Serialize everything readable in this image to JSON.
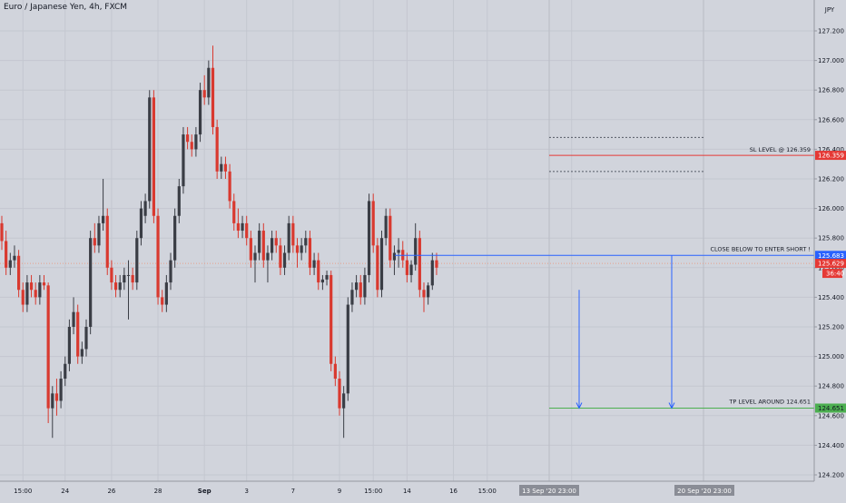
{
  "header": {
    "title": "Euro / Japanese Yen, 4h, FXCM",
    "currency": "JPY"
  },
  "colors": {
    "background": "#d1d4dc",
    "bull": "#3a3d45",
    "bear": "#d9392f",
    "sl_line": "#e53935",
    "entry_line": "#2962ff",
    "tp_line": "#4caf50",
    "dotted": "#555a66",
    "arrow": "#2962ff"
  },
  "chart_data": {
    "type": "candlestick",
    "title": "Euro / Japanese Yen, 4h, FXCM",
    "ylabel": "JPY",
    "ylim": [
      124.15,
      127.35
    ],
    "y_ticks": [
      "127.200",
      "127.000",
      "126.800",
      "126.600",
      "126.400",
      "126.200",
      "126.000",
      "125.800",
      "125.600",
      "125.400",
      "125.200",
      "125.000",
      "124.800",
      "124.600",
      "124.400",
      "124.200"
    ],
    "y_tick_values": [
      127.2,
      127.0,
      126.8,
      126.6,
      126.4,
      126.2,
      126.0,
      125.8,
      125.6,
      125.4,
      125.2,
      125.0,
      124.8,
      124.6,
      124.4,
      124.2
    ],
    "x_ticks": [
      "15:00",
      "24",
      "26",
      "28",
      "Sep",
      "3",
      "7",
      "9",
      "15:00",
      "14",
      "16",
      "15:00",
      "23"
    ],
    "x_tick_index": [
      5,
      15,
      26,
      37,
      48,
      58,
      69,
      80,
      88,
      96,
      107,
      115,
      135
    ],
    "x_count": 140,
    "gridlines": true,
    "candles_ohlc": [
      [
        125.9,
        125.95,
        125.72,
        125.78
      ],
      [
        125.78,
        125.85,
        125.55,
        125.6
      ],
      [
        125.6,
        125.7,
        125.55,
        125.65
      ],
      [
        125.65,
        125.75,
        125.6,
        125.68
      ],
      [
        125.68,
        125.72,
        125.4,
        125.45
      ],
      [
        125.45,
        125.5,
        125.3,
        125.35
      ],
      [
        125.35,
        125.55,
        125.3,
        125.5
      ],
      [
        125.5,
        125.55,
        125.4,
        125.45
      ],
      [
        125.45,
        125.5,
        125.35,
        125.4
      ],
      [
        125.4,
        125.55,
        125.35,
        125.5
      ],
      [
        125.5,
        125.55,
        125.45,
        125.48
      ],
      [
        125.48,
        125.5,
        124.55,
        124.65
      ],
      [
        124.65,
        124.8,
        124.45,
        124.75
      ],
      [
        124.75,
        124.85,
        124.6,
        124.7
      ],
      [
        124.7,
        124.9,
        124.65,
        124.85
      ],
      [
        124.85,
        125.0,
        124.8,
        124.95
      ],
      [
        124.95,
        125.25,
        124.9,
        125.2
      ],
      [
        125.2,
        125.4,
        125.15,
        125.3
      ],
      [
        125.3,
        125.35,
        124.95,
        125.0
      ],
      [
        125.0,
        125.1,
        124.95,
        125.05
      ],
      [
        125.05,
        125.25,
        125.0,
        125.2
      ],
      [
        125.2,
        125.85,
        125.15,
        125.8
      ],
      [
        125.8,
        125.9,
        125.7,
        125.75
      ],
      [
        125.75,
        125.95,
        125.7,
        125.9
      ],
      [
        125.9,
        126.2,
        125.85,
        125.95
      ],
      [
        125.95,
        126.0,
        125.55,
        125.6
      ],
      [
        125.6,
        125.65,
        125.45,
        125.5
      ],
      [
        125.5,
        125.55,
        125.4,
        125.45
      ],
      [
        125.45,
        125.55,
        125.4,
        125.5
      ],
      [
        125.5,
        125.6,
        125.45,
        125.55
      ],
      [
        125.55,
        125.65,
        125.25,
        125.55
      ],
      [
        125.55,
        125.6,
        125.45,
        125.5
      ],
      [
        125.5,
        125.85,
        125.45,
        125.8
      ],
      [
        125.8,
        126.05,
        125.75,
        126.0
      ],
      [
        125.95,
        126.1,
        125.9,
        126.05
      ],
      [
        126.05,
        126.8,
        126.0,
        126.75
      ],
      [
        126.75,
        126.8,
        125.9,
        125.95
      ],
      [
        125.95,
        126.0,
        125.35,
        125.4
      ],
      [
        125.4,
        125.45,
        125.3,
        125.35
      ],
      [
        125.35,
        125.55,
        125.3,
        125.5
      ],
      [
        125.5,
        125.7,
        125.45,
        125.65
      ],
      [
        125.65,
        126.0,
        125.6,
        125.95
      ],
      [
        125.95,
        126.2,
        125.9,
        126.15
      ],
      [
        126.15,
        126.55,
        126.1,
        126.5
      ],
      [
        126.5,
        126.55,
        126.4,
        126.45
      ],
      [
        126.45,
        126.5,
        126.35,
        126.4
      ],
      [
        126.4,
        126.55,
        126.35,
        126.5
      ],
      [
        126.5,
        126.85,
        126.45,
        126.8
      ],
      [
        126.8,
        126.9,
        126.7,
        126.75
      ],
      [
        126.75,
        127.0,
        126.7,
        126.95
      ],
      [
        126.95,
        127.1,
        126.5,
        126.55
      ],
      [
        126.55,
        126.6,
        126.2,
        126.25
      ],
      [
        126.25,
        126.35,
        126.2,
        126.3
      ],
      [
        126.3,
        126.35,
        126.2,
        126.25
      ],
      [
        126.25,
        126.3,
        126.0,
        126.05
      ],
      [
        126.05,
        126.1,
        125.85,
        125.9
      ],
      [
        125.9,
        126.0,
        125.8,
        125.85
      ],
      [
        125.85,
        125.95,
        125.8,
        125.9
      ],
      [
        125.9,
        125.95,
        125.75,
        125.8
      ],
      [
        125.8,
        125.85,
        125.6,
        125.65
      ],
      [
        125.65,
        125.75,
        125.5,
        125.7
      ],
      [
        125.7,
        125.9,
        125.65,
        125.85
      ],
      [
        125.85,
        125.9,
        125.6,
        125.65
      ],
      [
        125.65,
        125.75,
        125.5,
        125.7
      ],
      [
        125.7,
        125.85,
        125.65,
        125.8
      ],
      [
        125.8,
        125.85,
        125.7,
        125.75
      ],
      [
        125.75,
        125.8,
        125.55,
        125.6
      ],
      [
        125.6,
        125.75,
        125.55,
        125.7
      ],
      [
        125.7,
        125.95,
        125.65,
        125.9
      ],
      [
        125.9,
        125.95,
        125.7,
        125.75
      ],
      [
        125.75,
        125.8,
        125.6,
        125.7
      ],
      [
        125.7,
        125.8,
        125.65,
        125.75
      ],
      [
        125.75,
        125.85,
        125.7,
        125.8
      ],
      [
        125.8,
        125.85,
        125.55,
        125.6
      ],
      [
        125.6,
        125.7,
        125.55,
        125.65
      ],
      [
        125.65,
        125.7,
        125.45,
        125.5
      ],
      [
        125.5,
        125.55,
        125.45,
        125.52
      ],
      [
        125.52,
        125.58,
        125.48,
        125.55
      ],
      [
        125.55,
        125.58,
        124.9,
        124.95
      ],
      [
        124.95,
        125.0,
        124.8,
        124.85
      ],
      [
        124.85,
        124.9,
        124.6,
        124.65
      ],
      [
        124.65,
        124.8,
        124.45,
        124.75
      ],
      [
        124.75,
        125.4,
        124.7,
        125.35
      ],
      [
        125.35,
        125.5,
        125.3,
        125.45
      ],
      [
        125.45,
        125.55,
        125.4,
        125.5
      ],
      [
        125.5,
        125.55,
        125.35,
        125.4
      ],
      [
        125.4,
        125.6,
        125.35,
        125.55
      ],
      [
        125.55,
        126.1,
        125.5,
        126.05
      ],
      [
        126.05,
        126.1,
        125.7,
        125.75
      ],
      [
        125.75,
        125.8,
        125.4,
        125.45
      ],
      [
        125.45,
        125.85,
        125.4,
        125.8
      ],
      [
        125.8,
        126.0,
        125.75,
        125.95
      ],
      [
        125.95,
        126.0,
        125.6,
        125.65
      ],
      [
        125.65,
        125.75,
        125.55,
        125.7
      ],
      [
        125.7,
        125.8,
        125.6,
        125.72
      ],
      [
        125.72,
        125.78,
        125.6,
        125.65
      ],
      [
        125.65,
        125.7,
        125.5,
        125.55
      ],
      [
        125.55,
        125.65,
        125.5,
        125.62
      ],
      [
        125.62,
        125.9,
        125.58,
        125.8
      ],
      [
        125.8,
        125.85,
        125.4,
        125.45
      ],
      [
        125.45,
        125.5,
        125.3,
        125.4
      ],
      [
        125.4,
        125.5,
        125.35,
        125.48
      ],
      [
        125.48,
        125.7,
        125.45,
        125.65
      ],
      [
        125.65,
        125.7,
        125.55,
        125.6
      ]
    ],
    "annotations": {
      "sl_level": {
        "value": 126.359,
        "label": "SL LEVEL @ 126.359",
        "price_tag": "126.359"
      },
      "entry_level": {
        "value": 125.683,
        "label": "CLOSE BELOW TO ENTER SHORT !",
        "price_tag": "125.683"
      },
      "tp_level": {
        "value": 124.651,
        "label": "TP LEVEL AROUND 124.651",
        "price_tag": "124.651"
      },
      "current_price": {
        "value": 125.629,
        "price_tag": "125.629",
        "countdown": "36:40"
      },
      "dotted_upper": 126.48,
      "dotted_lower": 126.25,
      "range_start_label": "13 Sep '20 23:00",
      "range_end_label": "20 Sep '20 23:00"
    }
  }
}
